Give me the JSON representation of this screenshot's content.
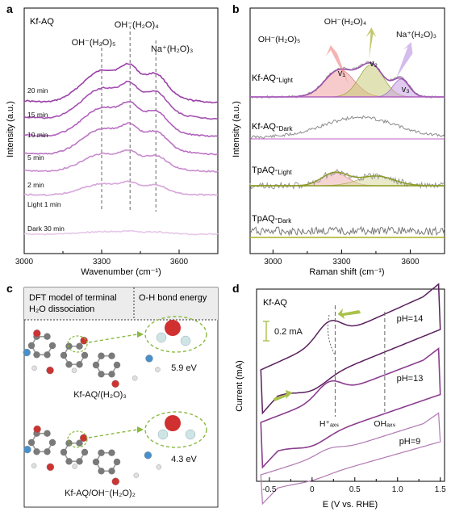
{
  "panel_a": {
    "letter": "a",
    "sample": "Kf-AQ",
    "ylabel": "Intensity (a.u.)",
    "xlabel": "Wavenumber (cm⁻¹)",
    "x_ticks": [
      "3000",
      "3300",
      "3600"
    ],
    "peaks": [
      {
        "label": "OH⁻(H₂O)₅",
        "x": 3300
      },
      {
        "label": "OH⁻(H₂O)₄",
        "x": 3410
      },
      {
        "label": "Na⁺(H₂O)₃",
        "x": 3510
      }
    ],
    "curve_labels": [
      "20 min",
      "15 min",
      "10 min",
      "5 min",
      "2 min",
      "Light 1 min",
      "Dark 30 min"
    ],
    "colors": [
      "#9b3fa8",
      "#a54fb2",
      "#b060bc",
      "#bb72c4",
      "#c98ccf",
      "#d6a6da",
      "#e6c8e8"
    ]
  },
  "panel_b": {
    "letter": "b",
    "ylabel": "Intensity (a.u.)",
    "xlabel": "Raman shift (cm⁻¹)",
    "x_ticks": [
      "3000",
      "3300",
      "3600"
    ],
    "peak_labels": [
      "OH⁻(H₂O)₅",
      "OH⁻(H₂O)₄",
      "Na⁺(H₂O)₃"
    ],
    "v_labels": [
      "v₁",
      "v₂",
      "v₃"
    ],
    "spectra": [
      "Kf-AQ-Light",
      "Kf-AQ-Dark",
      "TpAQ-Light",
      "TpAQ-Dark"
    ]
  },
  "panel_c": {
    "letter": "c",
    "header_left": "DFT model of terminal H₂O dissociation",
    "header_right": "O-H bond energy",
    "models": [
      {
        "label": "Kf-AQ/(H₂O)₃",
        "energy": "5.9 eV"
      },
      {
        "label": "Kf-AQ/OH⁻(H₂O)₂",
        "energy": "4.3 eV"
      }
    ]
  },
  "panel_d": {
    "letter": "d",
    "sample": "Kf-AQ",
    "ylabel": "Current (mA)",
    "xlabel": "E (V vs. RHE)",
    "x_ticks": [
      "-0.5",
      "0",
      "0.5",
      "1.0",
      "1.5"
    ],
    "scale_bar": "0.2 mA",
    "ph_labels": [
      "pH=14",
      "pH=13",
      "pH=9"
    ],
    "markers": [
      "H⁺ₐₓₛ",
      "OHₐₓₛ"
    ],
    "colors": [
      "#5a1f5e",
      "#8c3d8f",
      "#b07ab3"
    ],
    "arrow_color": "#a9c24a"
  },
  "chart_data": [
    {
      "type": "line",
      "panel": "a",
      "xlabel": "Wavenumber (cm⁻¹)",
      "ylabel": "Intensity (a.u.)",
      "xlim": [
        3000,
        3750
      ],
      "series": [
        {
          "name": "20 min"
        },
        {
          "name": "15 min"
        },
        {
          "name": "10 min"
        },
        {
          "name": "5 min"
        },
        {
          "name": "2 min"
        },
        {
          "name": "Light 1 min"
        },
        {
          "name": "Dark 30 min"
        }
      ],
      "annotations": [
        "OH⁻(H₂O)₅",
        "OH⁻(H₂O)₄",
        "Na⁺(H₂O)₃"
      ]
    },
    {
      "type": "line",
      "panel": "b",
      "xlabel": "Raman shift (cm⁻¹)",
      "ylabel": "Intensity (a.u.)",
      "xlim": [
        2900,
        3750
      ],
      "series": [
        {
          "name": "Kf-AQ-Light"
        },
        {
          "name": "Kf-AQ-Dark"
        },
        {
          "name": "TpAQ-Light"
        },
        {
          "name": "TpAQ-Dark"
        }
      ]
    },
    {
      "type": "line",
      "panel": "d",
      "xlabel": "E (V vs. RHE)",
      "ylabel": "Current (mA)",
      "xlim": [
        -0.65,
        1.55
      ],
      "series": [
        {
          "name": "pH=14"
        },
        {
          "name": "pH=13"
        },
        {
          "name": "pH=9"
        }
      ],
      "annotations": [
        "H⁺ₐₓₛ",
        "OHₐₓₛ"
      ]
    }
  ]
}
